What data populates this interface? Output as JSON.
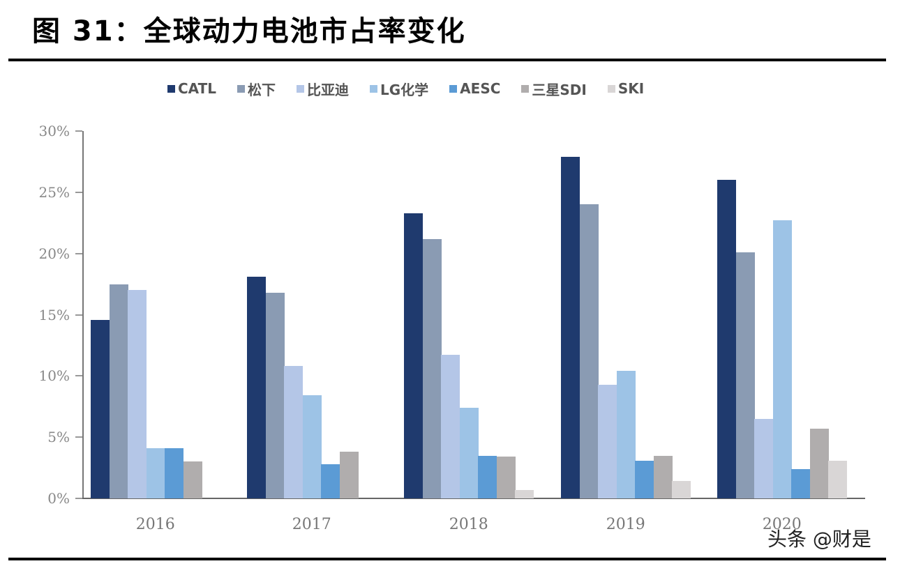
{
  "header": {
    "title": "图 31：全球动力电池市占率变化"
  },
  "watermark": "头条 @财是",
  "chart_data": {
    "type": "bar",
    "title": "图 31：全球动力电池市占率变化",
    "xlabel": "",
    "ylabel": "",
    "categories": [
      "2016",
      "2017",
      "2018",
      "2019",
      "2020"
    ],
    "ylim": [
      0,
      30
    ],
    "yticks": [
      "0%",
      "5%",
      "10%",
      "15%",
      "20%",
      "25%",
      "30%"
    ],
    "grid": false,
    "legend_position": "top",
    "series": [
      {
        "name": "CATL",
        "color": "#1f3a6e",
        "values": [
          14.6,
          18.1,
          23.3,
          27.9,
          26.0
        ]
      },
      {
        "name": "松下",
        "color": "#8a9bb3",
        "values": [
          17.5,
          16.8,
          21.2,
          24.0,
          20.1
        ]
      },
      {
        "name": "比亚迪",
        "color": "#b4c6e7",
        "values": [
          17.0,
          10.8,
          11.7,
          9.3,
          6.5
        ]
      },
      {
        "name": "LG化学",
        "color": "#9dc3e6",
        "values": [
          4.1,
          8.4,
          7.4,
          10.4,
          22.7
        ]
      },
      {
        "name": "AESC",
        "color": "#5b9bd5",
        "values": [
          4.1,
          2.8,
          3.5,
          3.1,
          2.4
        ]
      },
      {
        "name": "三星SDI",
        "color": "#b0adad",
        "values": [
          3.0,
          3.8,
          3.4,
          3.5,
          5.7
        ]
      },
      {
        "name": "SKI",
        "color": "#d9d6d6",
        "values": [
          0.0,
          0.0,
          0.7,
          1.4,
          3.1
        ]
      }
    ]
  }
}
